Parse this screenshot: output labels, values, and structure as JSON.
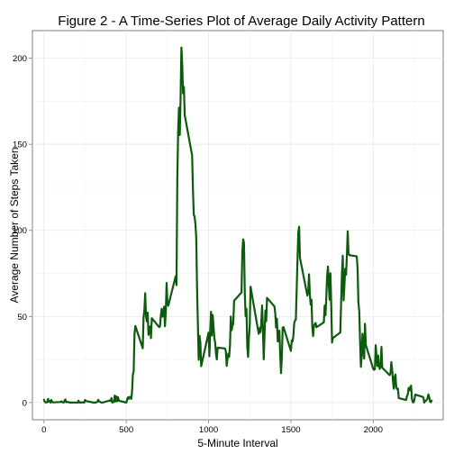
{
  "chart_data": {
    "type": "line",
    "title": "Figure 2 - A Time-Series Plot of Average Daily Activity Pattern",
    "xlabel": "5-Minute Interval",
    "ylabel": "Average Number of Steps Taken",
    "xlim": [
      -70,
      2425
    ],
    "ylim": [
      -10,
      216
    ],
    "x_ticks": [
      0,
      500,
      1000,
      1500,
      2000
    ],
    "y_ticks": [
      0,
      50,
      100,
      150,
      200
    ],
    "x_tick_labels": [
      "0",
      "500",
      "1000",
      "1500",
      "2000"
    ],
    "y_tick_labels": [
      "0",
      "50",
      "100",
      "150",
      "200"
    ],
    "grid": true,
    "legend": "none",
    "line_color": "#0c5a0c",
    "series": [
      {
        "points": [
          [
            0,
            1.7
          ],
          [
            5,
            0.3
          ],
          [
            10,
            0.1
          ],
          [
            15,
            0.2
          ],
          [
            20,
            0.1
          ],
          [
            25,
            2.1
          ],
          [
            30,
            0.5
          ],
          [
            35,
            0.9
          ],
          [
            40,
            0
          ],
          [
            45,
            1.5
          ],
          [
            50,
            0.3
          ],
          [
            55,
            0.1
          ],
          [
            100,
            0.3
          ],
          [
            105,
            0.7
          ],
          [
            110,
            0.2
          ],
          [
            115,
            0.3
          ],
          [
            120,
            0
          ],
          [
            125,
            1.1
          ],
          [
            130,
            1.8
          ],
          [
            135,
            0.2
          ],
          [
            140,
            0.2
          ],
          [
            145,
            0.4
          ],
          [
            150,
            0.3
          ],
          [
            155,
            0
          ],
          [
            200,
            0
          ],
          [
            205,
            0
          ],
          [
            210,
            1.1
          ],
          [
            215,
            0
          ],
          [
            220,
            0
          ],
          [
            225,
            0.1
          ],
          [
            230,
            0
          ],
          [
            235,
            0.2
          ],
          [
            240,
            0
          ],
          [
            245,
            0
          ],
          [
            250,
            1.5
          ],
          [
            255,
            0.9
          ],
          [
            300,
            0
          ],
          [
            305,
            0
          ],
          [
            310,
            0
          ],
          [
            315,
            0
          ],
          [
            320,
            0.2
          ],
          [
            325,
            0.6
          ],
          [
            330,
            1.6
          ],
          [
            335,
            0.6
          ],
          [
            340,
            0.5
          ],
          [
            345,
            0.1
          ],
          [
            350,
            0
          ],
          [
            355,
            0
          ],
          [
            400,
            1.2
          ],
          [
            405,
            0.9
          ],
          [
            410,
            2.6
          ],
          [
            415,
            0
          ],
          [
            420,
            0.3
          ],
          [
            425,
            0.4
          ],
          [
            430,
            4.1
          ],
          [
            435,
            0.7
          ],
          [
            440,
            3.5
          ],
          [
            445,
            0.8
          ],
          [
            450,
            3.1
          ],
          [
            455,
            1.1
          ],
          [
            500,
            0
          ],
          [
            505,
            1.6
          ],
          [
            510,
            3.0
          ],
          [
            515,
            2.2
          ],
          [
            520,
            3.3
          ],
          [
            525,
            3.0
          ],
          [
            530,
            2.1
          ],
          [
            535,
            6.1
          ],
          [
            540,
            16.0
          ],
          [
            545,
            18.3
          ],
          [
            550,
            39.5
          ],
          [
            555,
            44.5
          ],
          [
            600,
            31.5
          ],
          [
            605,
            49.3
          ],
          [
            610,
            53.8
          ],
          [
            615,
            63.5
          ],
          [
            620,
            50.0
          ],
          [
            625,
            47.1
          ],
          [
            630,
            52.2
          ],
          [
            635,
            39.3
          ],
          [
            640,
            44.0
          ],
          [
            645,
            44.2
          ],
          [
            650,
            37.4
          ],
          [
            655,
            49.0
          ],
          [
            700,
            43.8
          ],
          [
            705,
            44.4
          ],
          [
            710,
            50.5
          ],
          [
            715,
            54.5
          ],
          [
            720,
            49.9
          ],
          [
            725,
            51.0
          ],
          [
            730,
            55.7
          ],
          [
            735,
            44.3
          ],
          [
            740,
            52.3
          ],
          [
            745,
            69.5
          ],
          [
            750,
            57.8
          ],
          [
            755,
            56.2
          ],
          [
            800,
            73.4
          ],
          [
            805,
            68.2
          ],
          [
            810,
            129.4
          ],
          [
            815,
            157.5
          ],
          [
            820,
            171.2
          ],
          [
            825,
            155.4
          ],
          [
            830,
            177.3
          ],
          [
            835,
            206.2
          ],
          [
            840,
            195.9
          ],
          [
            845,
            179.6
          ],
          [
            850,
            183.4
          ],
          [
            855,
            167.0
          ],
          [
            900,
            143.5
          ],
          [
            905,
            124.0
          ],
          [
            910,
            109.1
          ],
          [
            915,
            108.1
          ],
          [
            920,
            103.7
          ],
          [
            925,
            95.9
          ],
          [
            930,
            66.2
          ],
          [
            935,
            45.2
          ],
          [
            940,
            24.8
          ],
          [
            945,
            38.8
          ],
          [
            950,
            35.0
          ],
          [
            955,
            21.1
          ],
          [
            1000,
            40.6
          ],
          [
            1005,
            26.9
          ],
          [
            1010,
            42.4
          ],
          [
            1015,
            52.7
          ],
          [
            1020,
            38.9
          ],
          [
            1025,
            50.8
          ],
          [
            1030,
            44.3
          ],
          [
            1035,
            37.4
          ],
          [
            1040,
            34.7
          ],
          [
            1045,
            28.3
          ],
          [
            1050,
            25.1
          ],
          [
            1055,
            31.9
          ],
          [
            1100,
            31.4
          ],
          [
            1105,
            29.7
          ],
          [
            1110,
            21.3
          ],
          [
            1115,
            25.5
          ],
          [
            1120,
            28.4
          ],
          [
            1125,
            26.5
          ],
          [
            1130,
            33.4
          ],
          [
            1135,
            50.0
          ],
          [
            1140,
            42.0
          ],
          [
            1145,
            44.6
          ],
          [
            1150,
            46.0
          ],
          [
            1155,
            59.2
          ],
          [
            1200,
            63.9
          ],
          [
            1205,
            87.7
          ],
          [
            1210,
            94.8
          ],
          [
            1215,
            92.8
          ],
          [
            1220,
            63.4
          ],
          [
            1225,
            50.2
          ],
          [
            1230,
            54.5
          ],
          [
            1235,
            32.4
          ],
          [
            1240,
            26.5
          ],
          [
            1245,
            37.7
          ],
          [
            1250,
            45.1
          ],
          [
            1255,
            67.3
          ],
          [
            1300,
            42.3
          ],
          [
            1305,
            39.9
          ],
          [
            1310,
            43.3
          ],
          [
            1315,
            40.9
          ],
          [
            1320,
            46.2
          ],
          [
            1325,
            56.4
          ],
          [
            1330,
            42.8
          ],
          [
            1335,
            25.1
          ],
          [
            1340,
            39.9
          ],
          [
            1345,
            53.5
          ],
          [
            1350,
            47.3
          ],
          [
            1355,
            60.8
          ],
          [
            1400,
            55.8
          ],
          [
            1405,
            51.9
          ],
          [
            1410,
            43.6
          ],
          [
            1415,
            48.7
          ],
          [
            1420,
            35.5
          ],
          [
            1425,
            37.5
          ],
          [
            1430,
            41.8
          ],
          [
            1435,
            27.5
          ],
          [
            1440,
            17.1
          ],
          [
            1445,
            26.1
          ],
          [
            1450,
            43.6
          ],
          [
            1455,
            43.8
          ],
          [
            1500,
            30.0
          ],
          [
            1505,
            36.1
          ],
          [
            1510,
            35.5
          ],
          [
            1515,
            38.8
          ],
          [
            1520,
            46.0
          ],
          [
            1525,
            47.8
          ],
          [
            1530,
            48.1
          ],
          [
            1535,
            65.3
          ],
          [
            1540,
            82.9
          ],
          [
            1545,
            98.7
          ],
          [
            1550,
            102.1
          ],
          [
            1555,
            84.0
          ],
          [
            1600,
            62.1
          ],
          [
            1605,
            64.1
          ],
          [
            1610,
            74.5
          ],
          [
            1615,
            63.2
          ],
          [
            1620,
            56.9
          ],
          [
            1625,
            59.8
          ],
          [
            1630,
            43.9
          ],
          [
            1635,
            38.6
          ],
          [
            1640,
            44.7
          ],
          [
            1645,
            45.5
          ],
          [
            1650,
            46.2
          ],
          [
            1655,
            43.7
          ],
          [
            1700,
            46.6
          ],
          [
            1705,
            56.3
          ],
          [
            1710,
            50.7
          ],
          [
            1715,
            61.2
          ],
          [
            1720,
            73.4
          ],
          [
            1725,
            79.0
          ],
          [
            1730,
            68.9
          ],
          [
            1735,
            59.7
          ],
          [
            1740,
            75.1
          ],
          [
            1745,
            56.5
          ],
          [
            1750,
            34.8
          ],
          [
            1755,
            37.5
          ],
          [
            1800,
            40.7
          ],
          [
            1805,
            58.0
          ],
          [
            1810,
            74.7
          ],
          [
            1815,
            85.3
          ],
          [
            1820,
            59.3
          ],
          [
            1825,
            67.8
          ],
          [
            1830,
            77.7
          ],
          [
            1835,
            74.2
          ],
          [
            1840,
            85.3
          ],
          [
            1845,
            99.5
          ],
          [
            1850,
            86.6
          ],
          [
            1855,
            85.6
          ],
          [
            1900,
            84.9
          ],
          [
            1905,
            77.8
          ],
          [
            1910,
            58.0
          ],
          [
            1915,
            53.4
          ],
          [
            1920,
            36.3
          ],
          [
            1925,
            20.7
          ],
          [
            1930,
            27.4
          ],
          [
            1935,
            40.0
          ],
          [
            1940,
            30.2
          ],
          [
            1945,
            25.5
          ],
          [
            1950,
            45.7
          ],
          [
            1955,
            33.5
          ],
          [
            2000,
            19.6
          ],
          [
            2005,
            19.0
          ],
          [
            2010,
            19.3
          ],
          [
            2015,
            33.3
          ],
          [
            2020,
            26.8
          ],
          [
            2025,
            21.2
          ],
          [
            2030,
            27.3
          ],
          [
            2035,
            21.3
          ],
          [
            2040,
            19.5
          ],
          [
            2045,
            21.3
          ],
          [
            2050,
            32.3
          ],
          [
            2055,
            20.2
          ],
          [
            2100,
            15.9
          ],
          [
            2105,
            17.2
          ],
          [
            2110,
            23.5
          ],
          [
            2115,
            19.2
          ],
          [
            2120,
            12.5
          ],
          [
            2125,
            8.0
          ],
          [
            2130,
            14.7
          ],
          [
            2135,
            16.3
          ],
          [
            2140,
            8.7
          ],
          [
            2145,
            7.8
          ],
          [
            2150,
            8.1
          ],
          [
            2155,
            2.6
          ],
          [
            2200,
            1.5
          ],
          [
            2205,
            3.7
          ],
          [
            2210,
            4.8
          ],
          [
            2215,
            8.5
          ],
          [
            2220,
            7.1
          ],
          [
            2225,
            8.7
          ],
          [
            2230,
            9.8
          ],
          [
            2235,
            2.2
          ],
          [
            2240,
            0.3
          ],
          [
            2245,
            0.1
          ],
          [
            2250,
            1.6
          ],
          [
            2255,
            4.6
          ],
          [
            2300,
            3.3
          ],
          [
            2305,
            2.8
          ],
          [
            2310,
            0
          ],
          [
            2315,
            0.8
          ],
          [
            2320,
            1.0
          ],
          [
            2325,
            1.6
          ],
          [
            2330,
            2.6
          ],
          [
            2335,
            4.7
          ],
          [
            2340,
            3.3
          ],
          [
            2345,
            0.6
          ],
          [
            2350,
            0.2
          ],
          [
            2355,
            1.1
          ]
        ]
      }
    ]
  }
}
